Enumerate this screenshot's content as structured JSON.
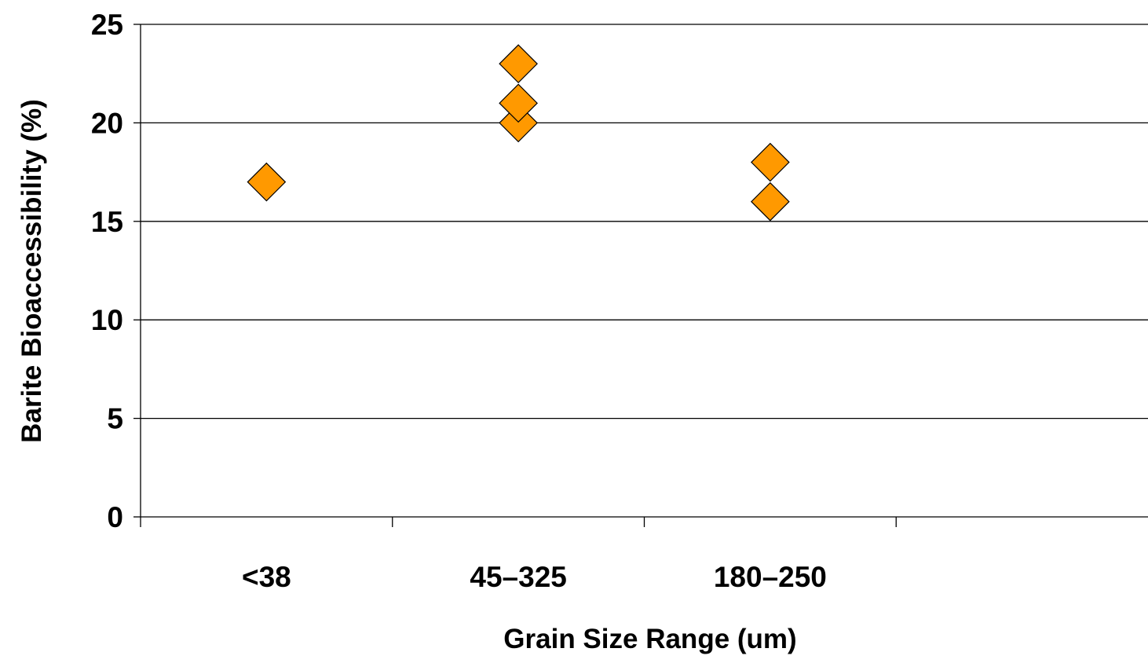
{
  "chart_data": {
    "type": "scatter",
    "title": "",
    "xlabel": "Grain Size Range (um)",
    "ylabel": "Barite Bioaccessibility (%)",
    "categories": [
      "<38",
      "45–325",
      "180–250",
      ""
    ],
    "ylim": [
      0,
      25
    ],
    "yticks": [
      "0",
      "5",
      "10",
      "15",
      "20",
      "25"
    ],
    "grid": true,
    "legend": "none",
    "marker": "diamond",
    "marker_color": "#FF9900",
    "points": [
      {
        "category": "<38",
        "y": 17
      },
      {
        "category": "45–325",
        "y": 20
      },
      {
        "category": "45–325",
        "y": 21
      },
      {
        "category": "45–325",
        "y": 23
      },
      {
        "category": "180–250",
        "y": 16
      },
      {
        "category": "180–250",
        "y": 18
      }
    ]
  }
}
